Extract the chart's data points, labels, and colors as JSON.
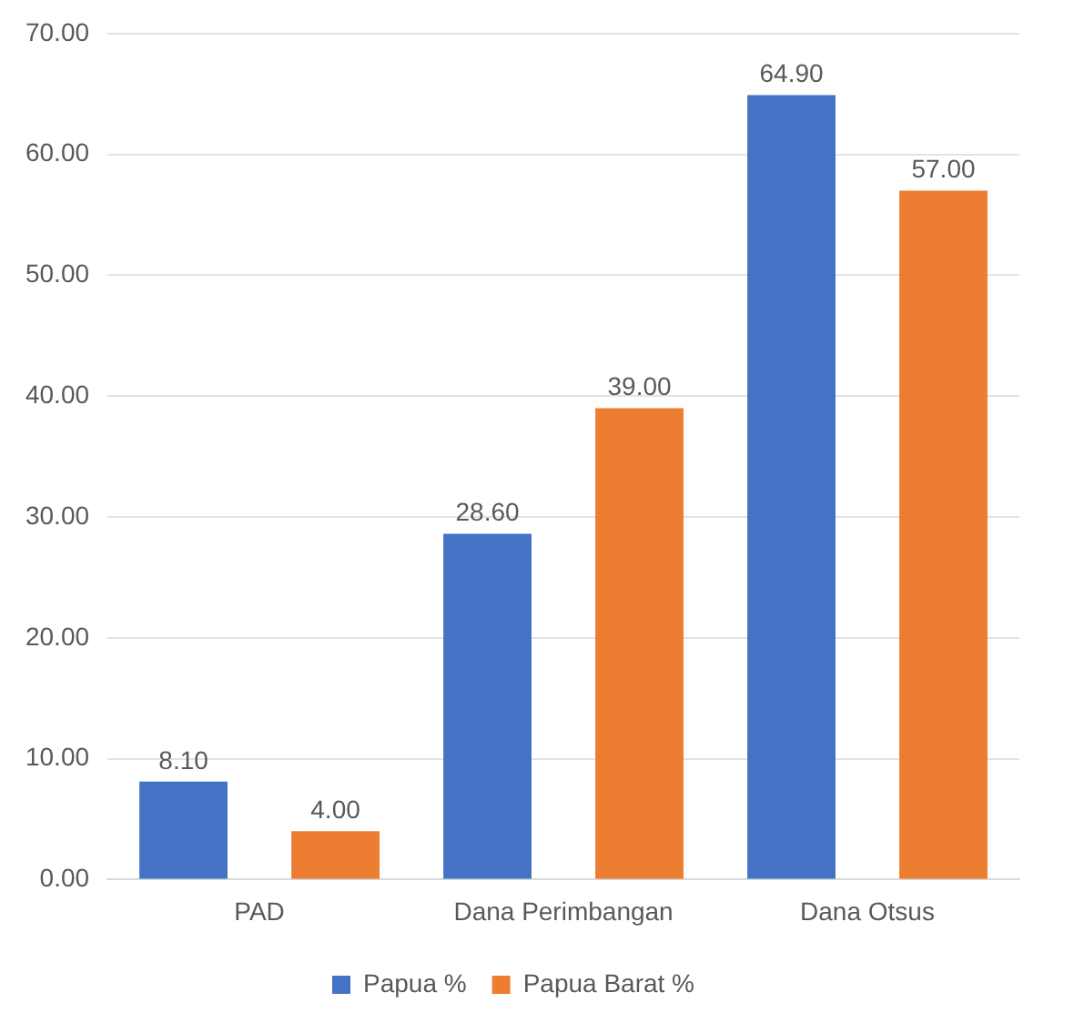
{
  "chart_data": {
    "type": "bar",
    "categories": [
      "PAD",
      "Dana Perimbangan",
      "Dana Otsus"
    ],
    "series": [
      {
        "name": "Papua %",
        "color": "#4472c4",
        "values": [
          8.1,
          28.6,
          64.9
        ],
        "value_labels": [
          "8.10",
          "28.60",
          "64.90"
        ]
      },
      {
        "name": "Papua Barat %",
        "color": "#ed7d31",
        "values": [
          4.0,
          39.0,
          57.0
        ],
        "value_labels": [
          "4.00",
          "39.00",
          "57.00"
        ]
      }
    ],
    "ylim": [
      0,
      70
    ],
    "yticks": [
      {
        "value": 0,
        "label": "0.00"
      },
      {
        "value": 10,
        "label": "10.00"
      },
      {
        "value": 20,
        "label": "20.00"
      },
      {
        "value": 30,
        "label": "30.00"
      },
      {
        "value": 40,
        "label": "40.00"
      },
      {
        "value": 50,
        "label": "50.00"
      },
      {
        "value": 60,
        "label": "60.00"
      },
      {
        "value": 70,
        "label": "70.00"
      }
    ],
    "grid": "y",
    "legend": "bottom"
  }
}
